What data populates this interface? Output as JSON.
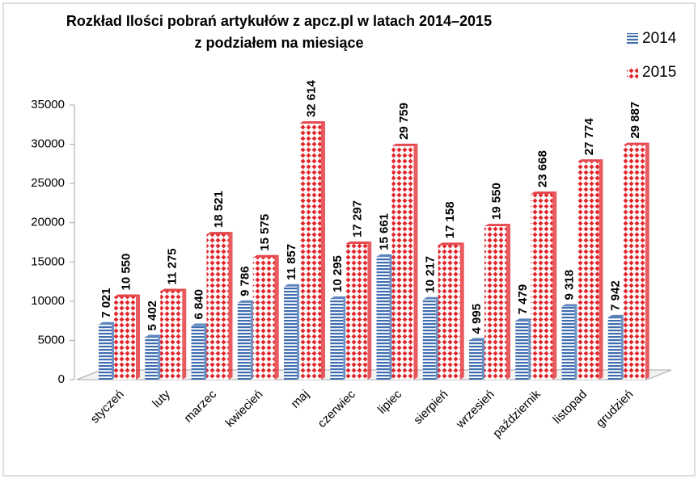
{
  "chart_data": {
    "type": "bar3d",
    "title": [
      "Rozkład Ilości pobrań artykułów z apcz.pl w latach 2014–2015",
      "z podziałem na miesiące"
    ],
    "categories": [
      "styczeń",
      "luty",
      "marzec",
      "kwiecień",
      "maj",
      "czerwiec",
      "lipiec",
      "sierpień",
      "wrzesień",
      "październik",
      "listopad",
      "grudzień"
    ],
    "series": [
      {
        "name": "2014",
        "color": "#3f6db0",
        "values": [
          7021,
          5402,
          6840,
          9786,
          11857,
          10295,
          15661,
          10217,
          4995,
          7479,
          9318,
          7942
        ],
        "value_labels": [
          "7 021",
          "5 402",
          "6 840",
          "9 786",
          "11 857",
          "10 295",
          "15 661",
          "10 217",
          "4 995",
          "7 479",
          "9 318",
          "7 942"
        ]
      },
      {
        "name": "2015",
        "color": "#e0262b",
        "values": [
          10550,
          11275,
          18521,
          15575,
          32614,
          17297,
          29759,
          17158,
          19550,
          23668,
          27774,
          29887
        ],
        "value_labels": [
          "10 550",
          "11 275",
          "18 521",
          "15 575",
          "32 614",
          "17 297",
          "29 759",
          "17 158",
          "19 550",
          "23 668",
          "27 774",
          "29 887"
        ]
      }
    ],
    "ylim": [
      0,
      35000
    ],
    "yticks": [
      0,
      5000,
      10000,
      15000,
      20000,
      25000,
      30000,
      35000
    ],
    "legend": "top-right"
  }
}
